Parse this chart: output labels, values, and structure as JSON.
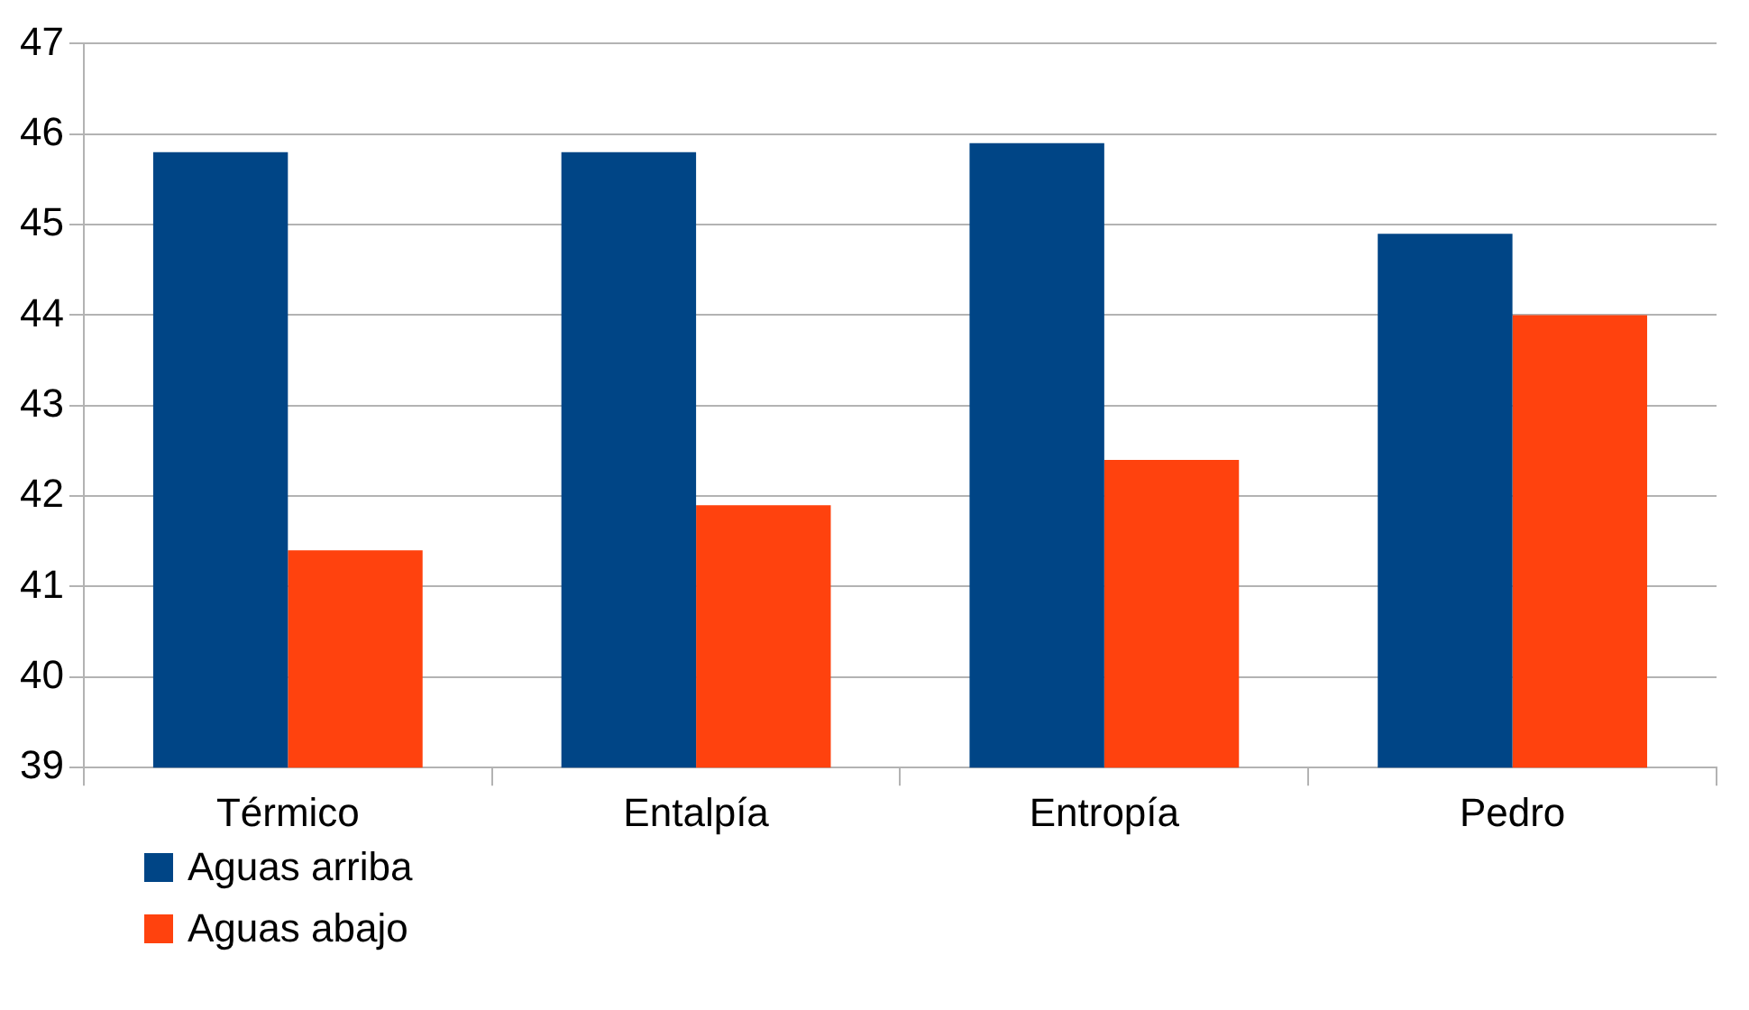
{
  "chart_data": {
    "type": "bar",
    "categories": [
      "Térmico",
      "Entalpía",
      "Entropía",
      "Pedro"
    ],
    "series": [
      {
        "name": "Aguas arriba",
        "color": "#004586",
        "values": [
          45.8,
          45.8,
          45.9,
          44.9
        ]
      },
      {
        "name": "Aguas abajo",
        "color": "#ff420e",
        "values": [
          41.4,
          41.9,
          42.4,
          44.0
        ]
      }
    ],
    "ylim": [
      39,
      47
    ],
    "yticks": [
      39,
      40,
      41,
      42,
      43,
      44,
      45,
      46,
      47
    ],
    "grid": "y",
    "legend": "bottom left"
  }
}
